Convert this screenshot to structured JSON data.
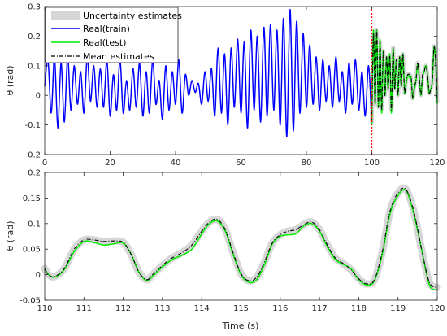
{
  "chart_data": [
    {
      "type": "line",
      "ylabel": "θ (rad)",
      "xlabel": "",
      "xlim": [
        0,
        120
      ],
      "ylim": [
        -0.2,
        0.3
      ],
      "xticks": [
        "0",
        "20",
        "40",
        "60",
        "80",
        "100",
        "120"
      ],
      "yticks": [
        "-0.2",
        "-0.1",
        "0",
        "0.1",
        "0.2",
        "0.3"
      ],
      "legend_position": "top-left",
      "legend": [
        "Uncertainty estimates",
        "Real(train)",
        "Real(test)",
        "Mean estimates"
      ],
      "vertical_marker": {
        "x": 100,
        "color": "#ff0000",
        "style": "dotted"
      },
      "series": [
        {
          "name": "Real(train)",
          "color": "#0000ff",
          "x": [
            0,
            1,
            2,
            3,
            4,
            5,
            6,
            7,
            8,
            9,
            10,
            11,
            12,
            13,
            14,
            15,
            16,
            17,
            18,
            19,
            20,
            21,
            22,
            23,
            24,
            25,
            26,
            27,
            28,
            29,
            30,
            31,
            32,
            33,
            34,
            35,
            36,
            37,
            38,
            39,
            40,
            41,
            42,
            43,
            44,
            45,
            46,
            47,
            48,
            49,
            50,
            51,
            52,
            53,
            54,
            55,
            56,
            57,
            58,
            59,
            60,
            61,
            62,
            63,
            64,
            65,
            66,
            67,
            68,
            69,
            70,
            71,
            72,
            73,
            74,
            75,
            76,
            77,
            78,
            79,
            80,
            81,
            82,
            83,
            84,
            85,
            86,
            87,
            88,
            89,
            90,
            91,
            92,
            93,
            94,
            95,
            96,
            97,
            98,
            99,
            100
          ],
          "y": [
            0.03,
            0.12,
            -0.06,
            0.13,
            -0.11,
            0.11,
            -0.09,
            0.13,
            -0.05,
            0.1,
            -0.03,
            0.08,
            -0.06,
            0.13,
            -0.02,
            0.1,
            -0.04,
            0.09,
            -0.04,
            0.12,
            -0.07,
            0.07,
            -0.05,
            0.12,
            -0.06,
            0.05,
            -0.05,
            0.09,
            -0.04,
            0.11,
            -0.07,
            0.08,
            -0.06,
            0.12,
            -0.03,
            0.05,
            -0.08,
            0.1,
            -0.05,
            0.08,
            -0.03,
            0.12,
            -0.06,
            0.07,
            0.0,
            0.05,
            0.01,
            0.04,
            -0.03,
            0.08,
            -0.02,
            0.09,
            -0.07,
            0.16,
            -0.06,
            0.14,
            -0.1,
            0.16,
            -0.04,
            0.19,
            -0.06,
            0.18,
            -0.11,
            0.22,
            -0.05,
            0.2,
            -0.09,
            0.23,
            -0.07,
            0.24,
            -0.05,
            0.22,
            -0.1,
            0.26,
            -0.14,
            0.29,
            -0.12,
            0.25,
            -0.06,
            0.21,
            -0.04,
            0.17,
            -0.03,
            0.13,
            -0.05,
            0.12,
            -0.02,
            0.1,
            -0.04,
            0.13,
            -0.02,
            0.08,
            -0.06,
            0.11,
            -0.03,
            0.12,
            -0.05,
            0.08,
            -0.07,
            0.1,
            -0.1
          ]
        },
        {
          "name": "Real(test)",
          "color": "#00ee00",
          "x": [
            100,
            100.5,
            101,
            101.5,
            102,
            102.5,
            103,
            103.5,
            104,
            104.5,
            105,
            105.5,
            106,
            106.5,
            107,
            107.5,
            108,
            108.5,
            109,
            109.5,
            110,
            110.5,
            111,
            111.5,
            112,
            112.5,
            113,
            113.5,
            114,
            114.5,
            115,
            115.5,
            116,
            116.5,
            117,
            117.5,
            118,
            118.5,
            119,
            119.5,
            120
          ],
          "y": [
            -0.1,
            0.22,
            -0.03,
            0.22,
            -0.04,
            0.19,
            -0.06,
            0.15,
            0.0,
            0.13,
            0.02,
            0.14,
            -0.06,
            0.16,
            0.02,
            0.12,
            0.0,
            0.13,
            0.03,
            0.14,
            0.01,
            0.04,
            0.07,
            0.06,
            0.06,
            -0.01,
            0.02,
            0.05,
            0.105,
            0.06,
            0.0,
            0.06,
            0.08,
            0.1,
            0.07,
            0.01,
            0.02,
            0.05,
            0.165,
            0.11,
            -0.03
          ]
        },
        {
          "name": "Mean estimates",
          "color": "#000000",
          "style": "dashdot",
          "x": [
            100,
            100.5,
            101,
            101.5,
            102,
            102.5,
            103,
            103.5,
            104,
            104.5,
            105,
            105.5,
            106,
            106.5,
            107,
            107.5,
            108,
            108.5,
            109,
            109.5,
            110,
            110.5,
            111,
            111.5,
            112,
            112.5,
            113,
            113.5,
            114,
            114.5,
            115,
            115.5,
            116,
            116.5,
            117,
            117.5,
            118,
            118.5,
            119,
            119.5,
            120
          ],
          "y": [
            -0.09,
            0.21,
            -0.03,
            0.22,
            -0.04,
            0.18,
            -0.05,
            0.15,
            0.0,
            0.13,
            0.02,
            0.13,
            -0.05,
            0.16,
            0.02,
            0.12,
            0.0,
            0.13,
            0.03,
            0.14,
            0.01,
            0.05,
            0.07,
            0.07,
            0.06,
            -0.01,
            0.03,
            0.05,
            0.11,
            0.06,
            0.0,
            0.07,
            0.08,
            0.1,
            0.07,
            0.01,
            0.02,
            0.05,
            0.165,
            0.11,
            -0.02
          ]
        }
      ]
    },
    {
      "type": "line",
      "ylabel": "θ (rad)",
      "xlabel": "Time (s)",
      "xlim": [
        110,
        120
      ],
      "ylim": [
        -0.05,
        0.2
      ],
      "xticks": [
        "110",
        "111",
        "112",
        "113",
        "114",
        "115",
        "116",
        "117",
        "118",
        "119",
        "120"
      ],
      "yticks": [
        "-0.05",
        "0",
        "0.05",
        "0.1",
        "0.15",
        "0.2"
      ],
      "uncertainty_color": "#d6d6d6",
      "series": [
        {
          "name": "Real(test)",
          "color": "#00ee00",
          "x": [
            110,
            110.1,
            110.25,
            110.5,
            110.75,
            111,
            111.25,
            111.5,
            111.75,
            112,
            112.2,
            112.4,
            112.6,
            112.75,
            113,
            113.25,
            113.5,
            113.75,
            114,
            114.2,
            114.4,
            114.6,
            114.8,
            115,
            115.2,
            115.4,
            115.6,
            115.8,
            116,
            116.2,
            116.4,
            116.6,
            116.8,
            117,
            117.2,
            117.4,
            117.6,
            117.8,
            118,
            118.2,
            118.4,
            118.6,
            118.8,
            119,
            119.2,
            119.4,
            119.6,
            119.8,
            120
          ],
          "y": [
            0.01,
            0.0,
            -0.005,
            0.01,
            0.045,
            0.065,
            0.063,
            0.058,
            0.06,
            0.062,
            0.04,
            0.005,
            -0.012,
            -0.003,
            0.015,
            0.03,
            0.038,
            0.05,
            0.08,
            0.1,
            0.105,
            0.085,
            0.04,
            0.0,
            -0.015,
            -0.01,
            0.02,
            0.06,
            0.075,
            0.078,
            0.08,
            0.095,
            0.1,
            0.085,
            0.055,
            0.03,
            0.02,
            0.012,
            -0.01,
            -0.02,
            -0.012,
            0.04,
            0.12,
            0.155,
            0.165,
            0.12,
            0.05,
            -0.02,
            -0.03
          ]
        },
        {
          "name": "Mean estimates",
          "color": "#000000",
          "style": "dashdot",
          "x": [
            110,
            110.1,
            110.25,
            110.5,
            110.75,
            111,
            111.25,
            111.5,
            111.75,
            112,
            112.2,
            112.4,
            112.6,
            112.75,
            113,
            113.25,
            113.5,
            113.75,
            114,
            114.2,
            114.4,
            114.6,
            114.8,
            115,
            115.2,
            115.4,
            115.6,
            115.8,
            116,
            116.2,
            116.4,
            116.6,
            116.8,
            117,
            117.2,
            117.4,
            117.6,
            117.8,
            118,
            118.2,
            118.4,
            118.6,
            118.8,
            119,
            119.2,
            119.4,
            119.6,
            119.8,
            120
          ],
          "y": [
            0.012,
            0.0,
            -0.004,
            0.012,
            0.05,
            0.068,
            0.068,
            0.065,
            0.066,
            0.063,
            0.04,
            0.005,
            -0.01,
            0.0,
            0.018,
            0.033,
            0.043,
            0.058,
            0.085,
            0.103,
            0.108,
            0.088,
            0.043,
            0.002,
            -0.012,
            -0.005,
            0.025,
            0.062,
            0.078,
            0.085,
            0.088,
            0.098,
            0.103,
            0.088,
            0.058,
            0.033,
            0.022,
            0.01,
            -0.008,
            -0.018,
            -0.01,
            0.045,
            0.125,
            0.16,
            0.167,
            0.125,
            0.05,
            -0.015,
            -0.025
          ]
        }
      ]
    }
  ]
}
